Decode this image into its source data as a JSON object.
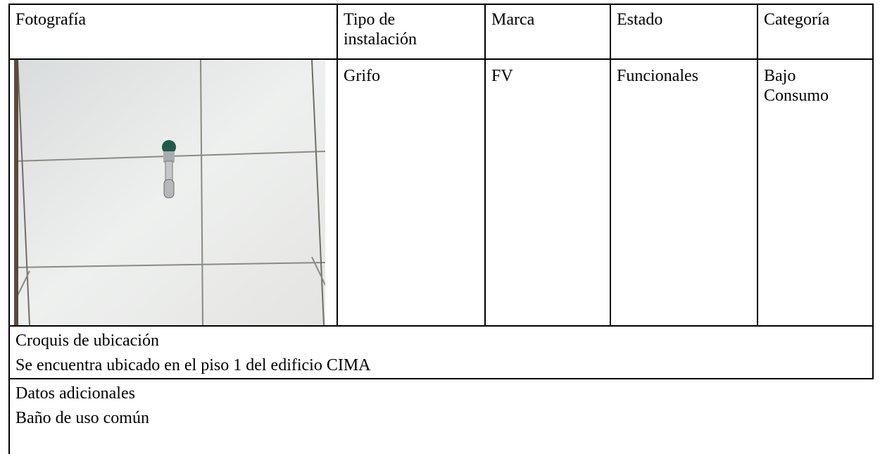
{
  "table": {
    "header": [
      "Fotografía",
      "Tipo de instalación",
      "Marca",
      "Estado",
      "Categoría"
    ],
    "row": [
      "Grifo",
      "FV",
      "Funcionales",
      "Bajo Consumo"
    ]
  },
  "croquis": {
    "label": "Croquis de ubicación",
    "text": "Se encuentra ubicado en el piso 1 del edificio CIMA"
  },
  "datos": {
    "label": "Datos adicionales",
    "text": "Baño de uso común"
  }
}
